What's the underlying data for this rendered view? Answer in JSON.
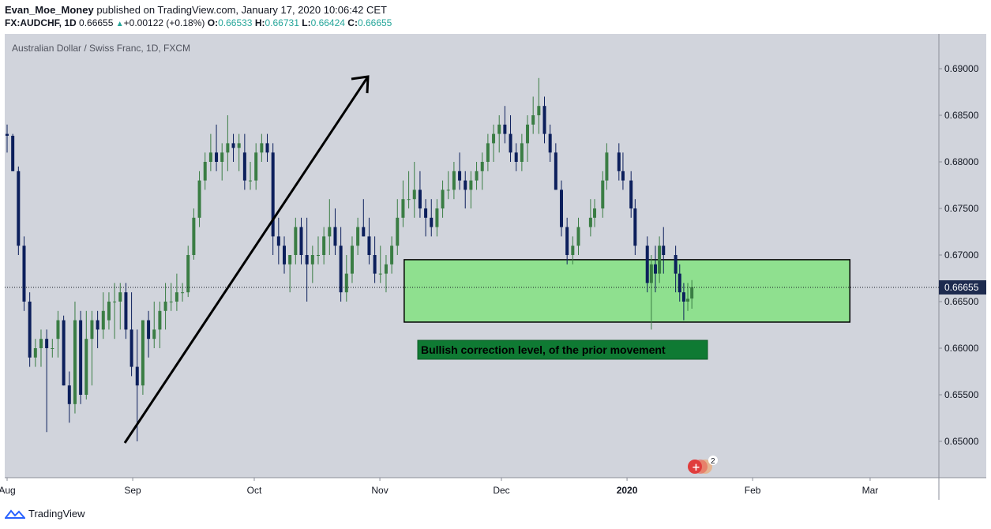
{
  "header": {
    "author": "Evan_Moe_Money",
    "published_text": "published on TradingView.com, January 17, 2020 10:06:42 CET",
    "symbol": "FX:AUDCHF, 1D",
    "last": "0.66655",
    "change": "+0.00122 (+0.18%)",
    "o_label": "O:",
    "o": "0.66533",
    "h_label": "H:",
    "h": "0.66731",
    "l_label": "L:",
    "l": "0.66424",
    "c_label": "C:",
    "c": "0.66655"
  },
  "legend_title": "Australian Dollar / Swiss Franc, 1D, FXCM",
  "annotation": "Bullish correction level, of the prior movement",
  "price_tag": "0.66655",
  "events_count": "2",
  "footer_brand": "TradingView",
  "colors": {
    "background": "#d1d4dc",
    "up": "#3a7d44",
    "down": "#0c1f5c",
    "zone_fill": "#8fe08f",
    "label_fill": "#0f7a33",
    "tag": "#1e2b4f"
  },
  "chart_data": {
    "type": "candlestick",
    "y_ticks": [
      "0.65000",
      "0.65500",
      "0.66000",
      "0.66500",
      "0.67000",
      "0.67500",
      "0.68000",
      "0.68500",
      "0.69000"
    ],
    "x_labels": [
      "Aug",
      "Sep",
      "Oct",
      "Nov",
      "Dec",
      "2020",
      "Feb",
      "Mar"
    ],
    "ylim": [
      0.6475,
      0.6925
    ],
    "zone": {
      "from": 0.6628,
      "to": 0.6695,
      "start": "2019-11-07",
      "end": "2020-02-25"
    },
    "arrow": {
      "from": [
        "2019-08-28",
        0.65
      ],
      "to": [
        "2019-10-30",
        0.689
      ]
    },
    "candles": [
      [
        "2019-08-01",
        0.683,
        0.684,
        0.681,
        0.6828
      ],
      [
        "2019-08-02",
        0.6828,
        0.683,
        0.679,
        0.679
      ],
      [
        "2019-08-05",
        0.679,
        0.6795,
        0.67,
        0.671
      ],
      [
        "2019-08-06",
        0.671,
        0.672,
        0.664,
        0.665
      ],
      [
        "2019-08-07",
        0.665,
        0.666,
        0.658,
        0.659
      ],
      [
        "2019-08-08",
        0.659,
        0.661,
        0.658,
        0.66
      ],
      [
        "2019-08-09",
        0.66,
        0.662,
        0.658,
        0.661
      ],
      [
        "2019-08-12",
        0.661,
        0.662,
        0.651,
        0.66
      ],
      [
        "2019-08-13",
        0.66,
        0.661,
        0.659,
        0.66
      ],
      [
        "2019-08-14",
        0.661,
        0.664,
        0.659,
        0.663
      ],
      [
        "2019-08-15",
        0.663,
        0.6635,
        0.656,
        0.656
      ],
      [
        "2019-08-16",
        0.656,
        0.6575,
        0.652,
        0.654
      ],
      [
        "2019-08-19",
        0.654,
        0.665,
        0.653,
        0.663
      ],
      [
        "2019-08-20",
        0.663,
        0.664,
        0.654,
        0.655
      ],
      [
        "2019-08-21",
        0.655,
        0.664,
        0.6545,
        0.661
      ],
      [
        "2019-08-22",
        0.661,
        0.664,
        0.656,
        0.663
      ],
      [
        "2019-08-23",
        0.663,
        0.664,
        0.66,
        0.662
      ],
      [
        "2019-08-26",
        0.662,
        0.666,
        0.661,
        0.664
      ],
      [
        "2019-08-27",
        0.663,
        0.666,
        0.662,
        0.665
      ],
      [
        "2019-08-28",
        0.665,
        0.667,
        0.661,
        0.665
      ],
      [
        "2019-08-29",
        0.665,
        0.667,
        0.662,
        0.666
      ],
      [
        "2019-08-30",
        0.666,
        0.667,
        0.661,
        0.662
      ],
      [
        "2019-09-02",
        0.662,
        0.666,
        0.657,
        0.658
      ],
      [
        "2019-09-03",
        0.658,
        0.662,
        0.65,
        0.656
      ],
      [
        "2019-09-04",
        0.656,
        0.663,
        0.655,
        0.663
      ],
      [
        "2019-09-05",
        0.663,
        0.664,
        0.659,
        0.661
      ],
      [
        "2019-09-06",
        0.661,
        0.665,
        0.66,
        0.662
      ],
      [
        "2019-09-09",
        0.662,
        0.665,
        0.66,
        0.664
      ],
      [
        "2019-09-10",
        0.664,
        0.667,
        0.662,
        0.665
      ],
      [
        "2019-09-11",
        0.665,
        0.667,
        0.664,
        0.665
      ],
      [
        "2019-09-12",
        0.665,
        0.668,
        0.664,
        0.666
      ],
      [
        "2019-09-13",
        0.666,
        0.667,
        0.665,
        0.666
      ],
      [
        "2019-09-16",
        0.666,
        0.671,
        0.6655,
        0.67
      ],
      [
        "2019-09-17",
        0.67,
        0.675,
        0.6695,
        0.674
      ],
      [
        "2019-09-18",
        0.674,
        0.679,
        0.673,
        0.678
      ],
      [
        "2019-09-19",
        0.678,
        0.681,
        0.677,
        0.68
      ],
      [
        "2019-09-20",
        0.68,
        0.683,
        0.679,
        0.681
      ],
      [
        "2019-09-23",
        0.681,
        0.684,
        0.679,
        0.68
      ],
      [
        "2019-09-24",
        0.68,
        0.682,
        0.678,
        0.681
      ],
      [
        "2019-09-25",
        0.681,
        0.685,
        0.679,
        0.682
      ],
      [
        "2019-09-26",
        0.682,
        0.683,
        0.68,
        0.6815
      ],
      [
        "2019-09-27",
        0.6815,
        0.683,
        0.679,
        0.682
      ],
      [
        "2019-09-30",
        0.681,
        0.683,
        0.677,
        0.678
      ],
      [
        "2019-10-01",
        0.678,
        0.68,
        0.677,
        0.678
      ],
      [
        "2019-10-02",
        0.678,
        0.682,
        0.677,
        0.681
      ],
      [
        "2019-10-03",
        0.681,
        0.683,
        0.68,
        0.682
      ],
      [
        "2019-10-04",
        0.682,
        0.683,
        0.68,
        0.681
      ],
      [
        "2019-10-07",
        0.681,
        0.682,
        0.67,
        0.672
      ],
      [
        "2019-10-08",
        0.672,
        0.674,
        0.669,
        0.671
      ],
      [
        "2019-10-09",
        0.671,
        0.672,
        0.668,
        0.669
      ],
      [
        "2019-10-10",
        0.669,
        0.67,
        0.666,
        0.67
      ],
      [
        "2019-10-11",
        0.67,
        0.674,
        0.669,
        0.673
      ],
      [
        "2019-10-14",
        0.673,
        0.674,
        0.669,
        0.67
      ],
      [
        "2019-10-15",
        0.67,
        0.674,
        0.665,
        0.669
      ],
      [
        "2019-10-16",
        0.669,
        0.671,
        0.667,
        0.67
      ],
      [
        "2019-10-17",
        0.67,
        0.672,
        0.669,
        0.67
      ],
      [
        "2019-10-18",
        0.67,
        0.673,
        0.669,
        0.672
      ],
      [
        "2019-10-21",
        0.672,
        0.676,
        0.67,
        0.673
      ],
      [
        "2019-10-22",
        0.673,
        0.675,
        0.67,
        0.671
      ],
      [
        "2019-10-23",
        0.671,
        0.673,
        0.665,
        0.666
      ],
      [
        "2019-10-24",
        0.666,
        0.67,
        0.665,
        0.668
      ],
      [
        "2019-10-25",
        0.668,
        0.672,
        0.667,
        0.671
      ],
      [
        "2019-10-28",
        0.671,
        0.674,
        0.67,
        0.673
      ],
      [
        "2019-10-29",
        0.673,
        0.676,
        0.672,
        0.672
      ],
      [
        "2019-10-30",
        0.672,
        0.674,
        0.669,
        0.67
      ],
      [
        "2019-10-31",
        0.67,
        0.672,
        0.667,
        0.668
      ],
      [
        "2019-11-01",
        0.668,
        0.671,
        0.667,
        0.668
      ],
      [
        "2019-11-04",
        0.668,
        0.67,
        0.666,
        0.669
      ],
      [
        "2019-11-05",
        0.669,
        0.672,
        0.668,
        0.671
      ],
      [
        "2019-11-06",
        0.671,
        0.676,
        0.67,
        0.674
      ],
      [
        "2019-11-07",
        0.674,
        0.678,
        0.673,
        0.676
      ],
      [
        "2019-11-08",
        0.676,
        0.679,
        0.675,
        0.676
      ],
      [
        "2019-11-11",
        0.676,
        0.68,
        0.674,
        0.677
      ],
      [
        "2019-11-12",
        0.677,
        0.679,
        0.674,
        0.675
      ],
      [
        "2019-11-13",
        0.675,
        0.676,
        0.672,
        0.674
      ],
      [
        "2019-11-14",
        0.674,
        0.676,
        0.672,
        0.673
      ],
      [
        "2019-11-15",
        0.673,
        0.676,
        0.672,
        0.675
      ],
      [
        "2019-11-18",
        0.675,
        0.678,
        0.674,
        0.677
      ],
      [
        "2019-11-19",
        0.677,
        0.679,
        0.676,
        0.677
      ],
      [
        "2019-11-20",
        0.677,
        0.68,
        0.676,
        0.679
      ],
      [
        "2019-11-21",
        0.679,
        0.681,
        0.677,
        0.678
      ],
      [
        "2019-11-22",
        0.678,
        0.679,
        0.675,
        0.677
      ],
      [
        "2019-11-25",
        0.677,
        0.679,
        0.675,
        0.678
      ],
      [
        "2019-11-26",
        0.678,
        0.68,
        0.677,
        0.679
      ],
      [
        "2019-11-27",
        0.679,
        0.681,
        0.677,
        0.68
      ],
      [
        "2019-11-28",
        0.68,
        0.683,
        0.679,
        0.682
      ],
      [
        "2019-11-29",
        0.682,
        0.684,
        0.68,
        0.683
      ],
      [
        "2019-12-02",
        0.683,
        0.685,
        0.681,
        0.684
      ],
      [
        "2019-12-03",
        0.684,
        0.686,
        0.682,
        0.683
      ],
      [
        "2019-12-04",
        0.683,
        0.685,
        0.68,
        0.681
      ],
      [
        "2019-12-05",
        0.681,
        0.682,
        0.679,
        0.68
      ],
      [
        "2019-12-06",
        0.68,
        0.683,
        0.679,
        0.682
      ],
      [
        "2019-12-09",
        0.682,
        0.685,
        0.68,
        0.684
      ],
      [
        "2019-12-10",
        0.684,
        0.687,
        0.683,
        0.685
      ],
      [
        "2019-12-11",
        0.685,
        0.689,
        0.683,
        0.686
      ],
      [
        "2019-12-12",
        0.686,
        0.687,
        0.682,
        0.683
      ],
      [
        "2019-12-13",
        0.683,
        0.684,
        0.68,
        0.681
      ],
      [
        "2019-12-16",
        0.681,
        0.682,
        0.677,
        0.677
      ],
      [
        "2019-12-17",
        0.677,
        0.678,
        0.672,
        0.673
      ],
      [
        "2019-12-18",
        0.673,
        0.674,
        0.669,
        0.67
      ],
      [
        "2019-12-19",
        0.67,
        0.672,
        0.669,
        0.671
      ],
      [
        "2019-12-20",
        0.671,
        0.674,
        0.67,
        0.673
      ]
    ]
  }
}
